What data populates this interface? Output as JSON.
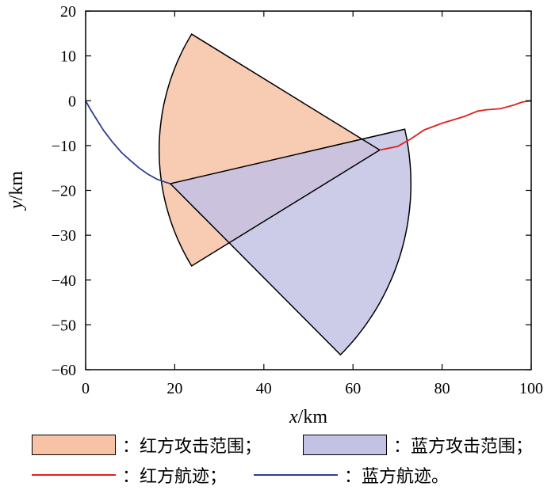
{
  "chart_data": {
    "type": "area",
    "xlabel_var": "x",
    "xlabel_unit": "/km",
    "ylabel_var": "y",
    "ylabel_unit": "/km",
    "xlim": [
      0,
      100
    ],
    "ylim": [
      -60,
      20
    ],
    "xticks": [
      "0",
      "20",
      "40",
      "60",
      "80",
      "100"
    ],
    "yticks": [
      "20",
      "10",
      "0",
      "−10",
      "−20",
      "−30",
      "−40",
      "−50",
      "−60"
    ],
    "grid": false,
    "legend_placement": "bottom",
    "series": [
      {
        "name": "：红方攻击范围；",
        "kind": "sector",
        "color": "#f7c2a6",
        "apex": [
          66,
          -11
        ],
        "radius": 49.5,
        "angle_start_deg": 148.5,
        "angle_end_deg": 211.5
      },
      {
        "name": "：蓝方攻击范围；",
        "kind": "sector",
        "color": "#c3c2e4",
        "apex": [
          19,
          -18.5
        ],
        "radius": 54,
        "angle_start_deg": -45,
        "angle_end_deg": 13
      },
      {
        "name": "：红方航迹；",
        "kind": "line",
        "color": "#e0201c",
        "x": [
          66,
          70,
          73,
          76,
          80,
          85,
          88,
          90,
          93,
          96,
          98,
          100
        ],
        "y": [
          -11,
          -10.2,
          -8.5,
          -6.5,
          -5,
          -3.5,
          -2.3,
          -2,
          -1.8,
          -1,
          -0.3,
          0
        ]
      },
      {
        "name": "：蓝方航迹。",
        "kind": "line",
        "color": "#2f3e96",
        "x": [
          0,
          1,
          2,
          3,
          4,
          6,
          8,
          10,
          12,
          14,
          16,
          18,
          19
        ],
        "y": [
          0,
          -1.8,
          -3.4,
          -5,
          -6.6,
          -9.2,
          -11.5,
          -13.3,
          -15,
          -16.4,
          -17.5,
          -18.2,
          -18.5
        ]
      }
    ]
  }
}
